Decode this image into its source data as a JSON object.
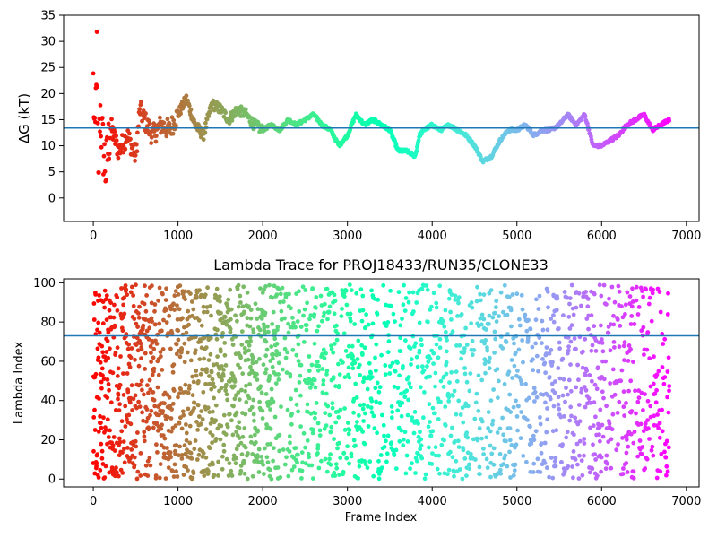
{
  "chart_data": [
    {
      "type": "scatter",
      "title": "",
      "xlabel": "",
      "ylabel": "ΔG (kT)",
      "xlim": [
        -350,
        7150
      ],
      "ylim": [
        -4.5,
        35
      ],
      "xticks": [
        0,
        1000,
        2000,
        3000,
        4000,
        5000,
        6000,
        7000
      ],
      "yticks": [
        0,
        5,
        10,
        15,
        20,
        25,
        30,
        35
      ],
      "xtick_labels": [
        "0",
        "1000",
        "2000",
        "3000",
        "4000",
        "5000",
        "6000",
        "7000"
      ],
      "ytick_labels": [
        "0",
        "5",
        "10",
        "15",
        "20",
        "25",
        "30",
        "35"
      ],
      "colormap": "rainbow (red at frame 0 → violet at last frame)",
      "hline": {
        "y": 13.4,
        "color": "#1f77b4"
      },
      "x_range": [
        0,
        6800
      ],
      "series": [
        {
          "trace_keypoints": [
            [
              0,
              22
            ],
            [
              20,
              8
            ],
            [
              40,
              30
            ],
            [
              60,
              2
            ],
            [
              80,
              18
            ],
            [
              100,
              12
            ],
            [
              150,
              5
            ],
            [
              200,
              14
            ],
            [
              300,
              9
            ],
            [
              400,
              12
            ],
            [
              500,
              8
            ],
            [
              550,
              17
            ],
            [
              600,
              15
            ],
            [
              700,
              12
            ],
            [
              800,
              14
            ],
            [
              900,
              13
            ],
            [
              1000,
              16
            ],
            [
              1100,
              19
            ],
            [
              1200,
              14
            ],
            [
              1300,
              12
            ],
            [
              1400,
              18
            ],
            [
              1500,
              17
            ],
            [
              1600,
              15
            ],
            [
              1700,
              17
            ],
            [
              1800,
              16
            ],
            [
              1900,
              14
            ],
            [
              2000,
              13
            ],
            [
              2100,
              14
            ],
            [
              2200,
              13
            ],
            [
              2300,
              15
            ],
            [
              2400,
              14
            ],
            [
              2500,
              15
            ],
            [
              2600,
              16
            ],
            [
              2700,
              14
            ],
            [
              2800,
              13
            ],
            [
              2900,
              10
            ],
            [
              3000,
              12
            ],
            [
              3100,
              16
            ],
            [
              3200,
              14
            ],
            [
              3300,
              15
            ],
            [
              3400,
              14
            ],
            [
              3500,
              13
            ],
            [
              3600,
              9
            ],
            [
              3700,
              9
            ],
            [
              3800,
              8
            ],
            [
              3850,
              12
            ],
            [
              3900,
              13
            ],
            [
              4000,
              14
            ],
            [
              4100,
              13
            ],
            [
              4200,
              14
            ],
            [
              4300,
              13
            ],
            [
              4400,
              12
            ],
            [
              4500,
              10
            ],
            [
              4600,
              7
            ],
            [
              4700,
              8
            ],
            [
              4800,
              11
            ],
            [
              4900,
              13
            ],
            [
              5000,
              13
            ],
            [
              5100,
              14
            ],
            [
              5200,
              12
            ],
            [
              5300,
              13
            ],
            [
              5400,
              13
            ],
            [
              5500,
              14
            ],
            [
              5600,
              16
            ],
            [
              5700,
              14
            ],
            [
              5800,
              16
            ],
            [
              5900,
              10
            ],
            [
              6000,
              10
            ],
            [
              6100,
              11
            ],
            [
              6200,
              12
            ],
            [
              6300,
              14
            ],
            [
              6400,
              15
            ],
            [
              6500,
              16
            ],
            [
              6600,
              13
            ],
            [
              6700,
              14
            ],
            [
              6800,
              15
            ]
          ]
        }
      ]
    },
    {
      "type": "scatter",
      "title": "Lambda Trace for PROJ18433/RUN35/CLONE33",
      "xlabel": "Frame Index",
      "ylabel": "Lambda Index",
      "xlim": [
        -350,
        7150
      ],
      "ylim": [
        -4,
        102
      ],
      "xticks": [
        0,
        1000,
        2000,
        3000,
        4000,
        5000,
        6000,
        7000
      ],
      "yticks": [
        0,
        20,
        40,
        60,
        80,
        100
      ],
      "xtick_labels": [
        "0",
        "1000",
        "2000",
        "3000",
        "4000",
        "5000",
        "6000",
        "7000"
      ],
      "ytick_labels": [
        "0",
        "20",
        "40",
        "60",
        "80",
        "100"
      ],
      "colormap": "rainbow (red at frame 0 → violet at last frame)",
      "hline": {
        "y": 73,
        "color": "#1f77b4"
      },
      "x_range": [
        0,
        6800
      ],
      "y_range": [
        0,
        99
      ]
    }
  ]
}
